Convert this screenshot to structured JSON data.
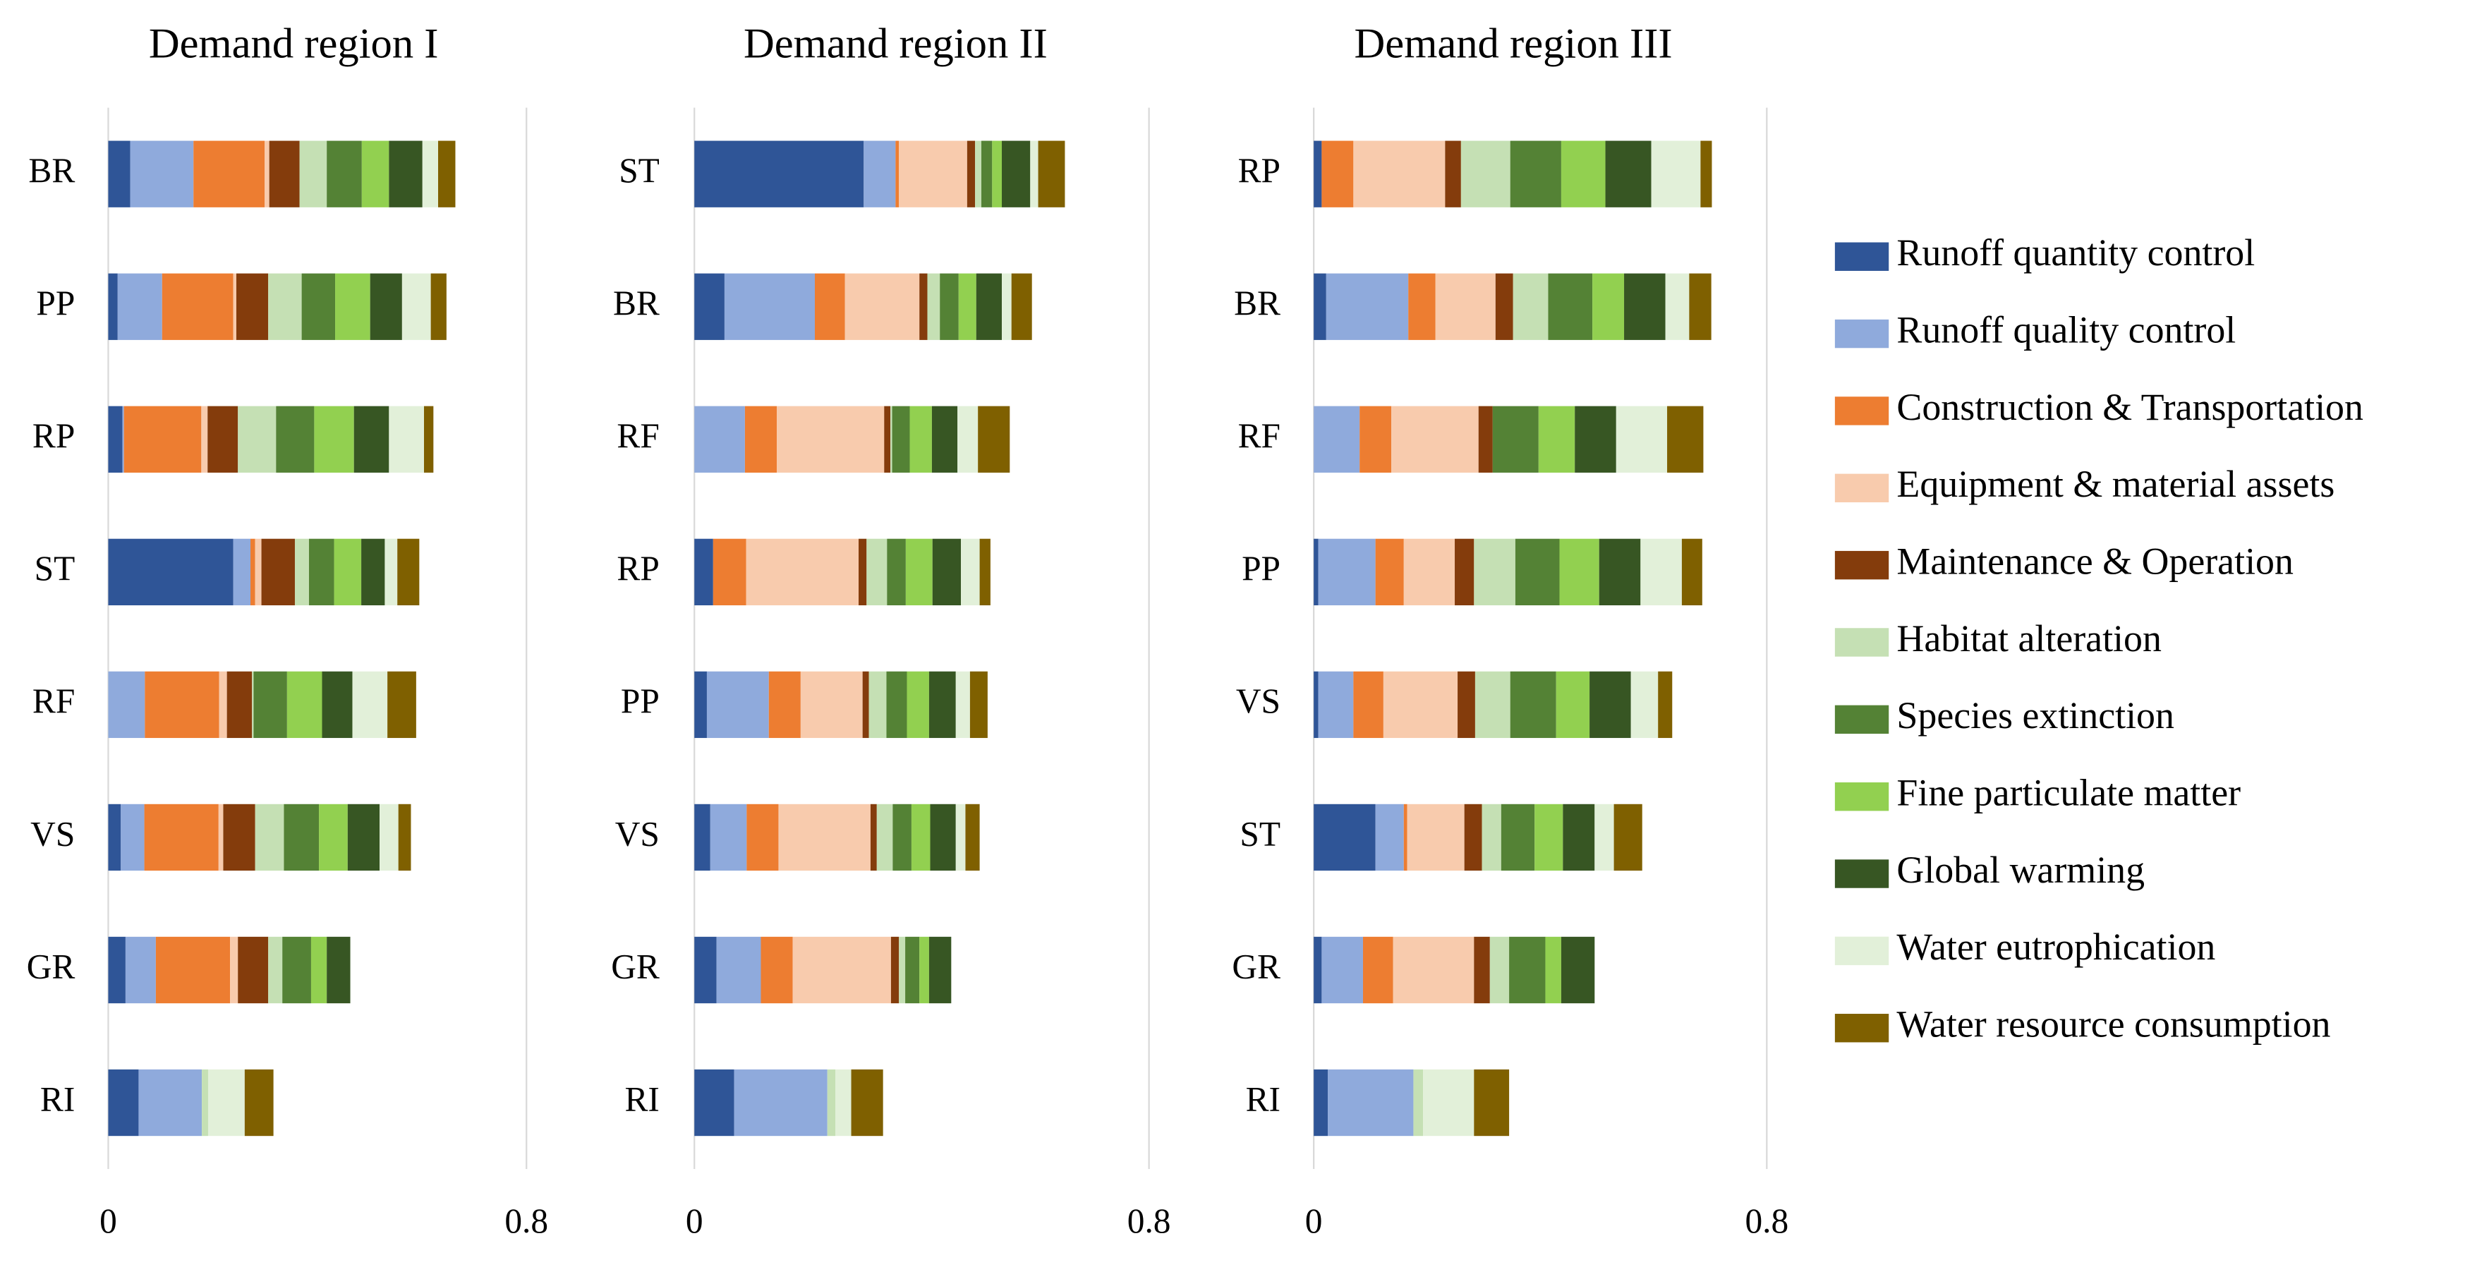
{
  "chart_data": [
    {
      "type": "bar",
      "orientation": "horizontal",
      "stacked": true,
      "title": "Demand region I",
      "categories": [
        "BR",
        "PP",
        "RP",
        "ST",
        "RF",
        "VS",
        "GR",
        "RI"
      ],
      "xlim": [
        0,
        0.8
      ],
      "xticks": [
        0,
        0.8
      ],
      "series": [
        {
          "values": [
            0.042,
            0.018,
            0.027,
            0.239,
            0,
            0.024,
            0.033,
            0.058
          ]
        },
        {
          "values": [
            0.121,
            0.085,
            0.003,
            0.033,
            0.07,
            0.045,
            0.058,
            0.121
          ]
        },
        {
          "values": [
            0.136,
            0.136,
            0.148,
            0.009,
            0.142,
            0.142,
            0.142,
            0
          ]
        },
        {
          "values": [
            0.009,
            0.006,
            0.012,
            0.012,
            0.015,
            0.009,
            0.015,
            0
          ]
        },
        {
          "values": [
            0.058,
            0.061,
            0.058,
            0.064,
            0.048,
            0.061,
            0.058,
            0
          ]
        },
        {
          "values": [
            0.052,
            0.064,
            0.073,
            0.027,
            0.003,
            0.055,
            0.027,
            0.012
          ]
        },
        {
          "values": [
            0.067,
            0.064,
            0.073,
            0.048,
            0.064,
            0.067,
            0.055,
            0
          ]
        },
        {
          "values": [
            0.052,
            0.067,
            0.076,
            0.052,
            0.067,
            0.055,
            0.03,
            0
          ]
        },
        {
          "values": [
            0.064,
            0.061,
            0.067,
            0.045,
            0.058,
            0.061,
            0.045,
            0
          ]
        },
        {
          "values": [
            0.03,
            0.055,
            0.067,
            0.024,
            0.067,
            0.036,
            0,
            0.07
          ]
        },
        {
          "values": [
            0.033,
            0.03,
            0.018,
            0.042,
            0.055,
            0.024,
            0,
            0.055
          ]
        }
      ]
    },
    {
      "type": "bar",
      "orientation": "horizontal",
      "stacked": true,
      "title": "Demand region II",
      "categories": [
        "ST",
        "BR",
        "RF",
        "RP",
        "PP",
        "VS",
        "GR",
        "RI"
      ],
      "xlim": [
        0,
        0.8
      ],
      "xticks": [
        0,
        0.8
      ],
      "series": [
        {
          "values": [
            0.298,
            0.053,
            0,
            0.033,
            0.022,
            0.028,
            0.039,
            0.07
          ]
        },
        {
          "values": [
            0.056,
            0.159,
            0.089,
            0,
            0.109,
            0.064,
            0.078,
            0.164
          ]
        },
        {
          "values": [
            0.006,
            0.053,
            0.056,
            0.058,
            0.056,
            0.056,
            0.056,
            0
          ]
        },
        {
          "values": [
            0.12,
            0.131,
            0.189,
            0.198,
            0.109,
            0.162,
            0.173,
            0
          ]
        },
        {
          "values": [
            0.014,
            0.014,
            0.011,
            0.014,
            0.011,
            0.011,
            0.014,
            0
          ]
        },
        {
          "values": [
            0.011,
            0.022,
            0.003,
            0.036,
            0.031,
            0.028,
            0.011,
            0.014
          ]
        },
        {
          "values": [
            0.019,
            0.033,
            0.031,
            0.033,
            0.036,
            0.033,
            0.025,
            0
          ]
        },
        {
          "values": [
            0.017,
            0.031,
            0.039,
            0.047,
            0.039,
            0.033,
            0.017,
            0
          ]
        },
        {
          "values": [
            0.05,
            0.045,
            0.045,
            0.05,
            0.047,
            0.045,
            0.039,
            0
          ]
        },
        {
          "values": [
            0.014,
            0.017,
            0.036,
            0.033,
            0.025,
            0.017,
            0,
            0.028
          ]
        },
        {
          "values": [
            0.047,
            0.036,
            0.056,
            0.019,
            0.031,
            0.025,
            0,
            0.056
          ]
        }
      ]
    },
    {
      "type": "bar",
      "orientation": "horizontal",
      "stacked": true,
      "title": "Demand region III",
      "categories": [
        "RP",
        "BR",
        "RF",
        "PP",
        "VS",
        "ST",
        "GR",
        "RI"
      ],
      "xlim": [
        0,
        0.8
      ],
      "xticks": [
        0,
        0.8
      ],
      "series": [
        {
          "values": [
            0.014,
            0.022,
            0,
            0.008,
            0.008,
            0.109,
            0.014,
            0.025
          ]
        },
        {
          "values": [
            0,
            0.145,
            0.081,
            0.101,
            0.062,
            0.05,
            0.073,
            0.151
          ]
        },
        {
          "values": [
            0.056,
            0.048,
            0.056,
            0.05,
            0.053,
            0.006,
            0.053,
            0
          ]
        },
        {
          "values": [
            0.162,
            0.106,
            0.154,
            0.09,
            0.131,
            0.101,
            0.143,
            0
          ]
        },
        {
          "values": [
            0.028,
            0.031,
            0.025,
            0.034,
            0.031,
            0.031,
            0.028,
            0
          ]
        },
        {
          "values": [
            0.087,
            0.062,
            0,
            0.073,
            0.062,
            0.034,
            0.034,
            0.017
          ]
        },
        {
          "values": [
            0.09,
            0.078,
            0.081,
            0.078,
            0.081,
            0.059,
            0.064,
            0
          ]
        },
        {
          "values": [
            0.078,
            0.056,
            0.064,
            0.07,
            0.059,
            0.05,
            0.028,
            0
          ]
        },
        {
          "values": [
            0.081,
            0.073,
            0.073,
            0.073,
            0.073,
            0.056,
            0.059,
            0
          ]
        },
        {
          "values": [
            0.087,
            0.042,
            0.09,
            0.073,
            0.048,
            0.034,
            0,
            0.09
          ]
        },
        {
          "values": [
            0.02,
            0.039,
            0.064,
            0.036,
            0.025,
            0.05,
            0,
            0.062
          ]
        }
      ]
    }
  ],
  "legend": {
    "position": "right",
    "entries": [
      {
        "name": "Runoff quantity control",
        "color": "#2f5597"
      },
      {
        "name": "Runoff quality control",
        "color": "#8faadc"
      },
      {
        "name": "Construction & Transportation",
        "color": "#ed7d31"
      },
      {
        "name": "Equipment & material assets",
        "color": "#f8cbad"
      },
      {
        "name": "Maintenance & Operation",
        "color": "#843c0c"
      },
      {
        "name": "Habitat alteration",
        "color": "#c5e0b4"
      },
      {
        "name": "Species extinction",
        "color": "#548235"
      },
      {
        "name": "Fine particulate matter",
        "color": "#92d050"
      },
      {
        "name": "Global warming",
        "color": "#375623"
      },
      {
        "name": "Water eutrophication",
        "color": "#e2f0d9"
      },
      {
        "name": "Water resource consumption",
        "color": "#7f6000"
      }
    ]
  }
}
